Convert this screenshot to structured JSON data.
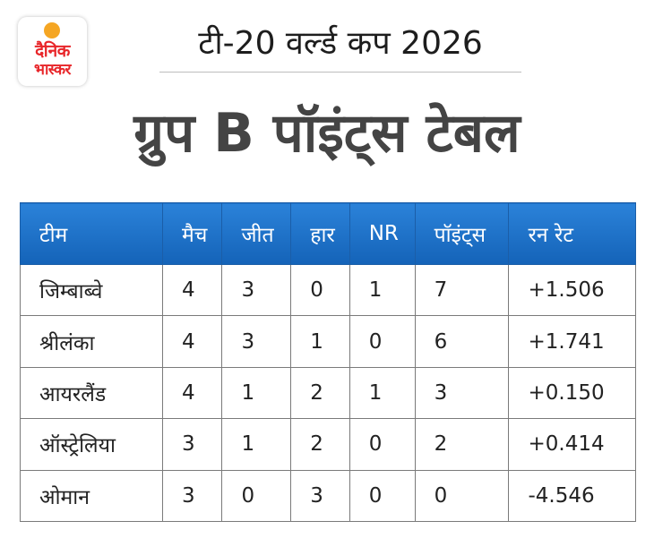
{
  "brand": {
    "logo_line1": "दैनिक",
    "logo_line2": "भास्कर",
    "accent_color": "#e8262a"
  },
  "header": {
    "supertitle": "टी-20 वर्ल्ड कप 2026",
    "title": "ग्रुप B पॉइंट्स टेबल"
  },
  "table": {
    "header_color": "#1a6fc8",
    "columns": [
      "टीम",
      "मैच",
      "जीत",
      "हार",
      "NR",
      "पॉइंट्स",
      "रन रेट"
    ],
    "rows": [
      [
        "जिम्बाब्वे",
        "4",
        "3",
        "0",
        "1",
        "7",
        "+1.506"
      ],
      [
        "श्रीलंका",
        "4",
        "3",
        "1",
        "0",
        "6",
        "+1.741"
      ],
      [
        "आयरलैंड",
        "4",
        "1",
        "2",
        "1",
        "3",
        "+0.150"
      ],
      [
        "ऑस्ट्रेलिया",
        "3",
        "1",
        "2",
        "0",
        "2",
        "+0.414"
      ],
      [
        "ओमान",
        "3",
        "0",
        "3",
        "0",
        "0",
        "-4.546"
      ]
    ]
  }
}
